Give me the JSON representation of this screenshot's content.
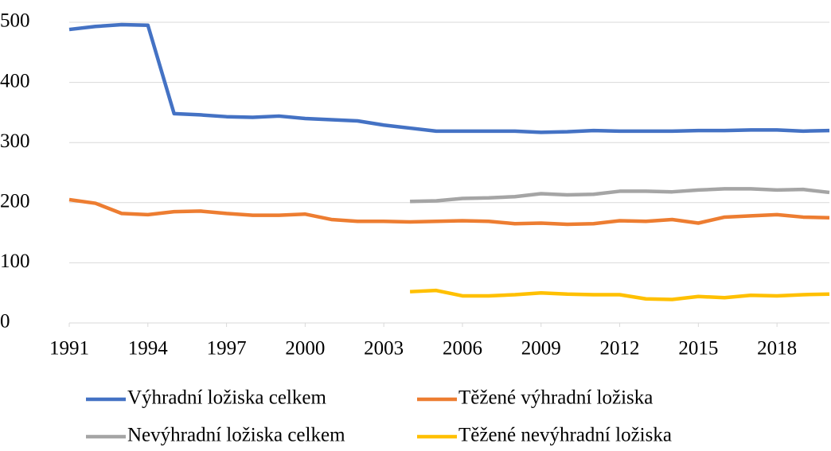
{
  "chart_data": {
    "type": "line",
    "x": [
      1991,
      1992,
      1993,
      1994,
      1995,
      1996,
      1997,
      1998,
      1999,
      2000,
      2001,
      2002,
      2003,
      2004,
      2005,
      2006,
      2007,
      2008,
      2009,
      2010,
      2011,
      2012,
      2013,
      2014,
      2015,
      2016,
      2017,
      2018,
      2019,
      2020
    ],
    "xlim": [
      1991,
      2020
    ],
    "xticks": [
      1991,
      1994,
      1997,
      2000,
      2003,
      2006,
      2009,
      2012,
      2015,
      2018
    ],
    "ylim": [
      0,
      500
    ],
    "yticks": [
      0,
      100,
      200,
      300,
      400,
      500
    ],
    "grid": true,
    "legend": "bottom",
    "series": [
      {
        "name": "Výhradní ložiska celkem",
        "color": "#4472c4",
        "values": [
          488,
          493,
          496,
          495,
          348,
          346,
          343,
          342,
          344,
          340,
          338,
          336,
          329,
          324,
          319,
          319,
          319,
          319,
          317,
          318,
          320,
          319,
          319,
          319,
          320,
          320,
          321,
          321,
          319,
          320
        ]
      },
      {
        "name": "Těžené výhradní ložiska",
        "color": "#ed7d31",
        "values": [
          205,
          199,
          182,
          180,
          185,
          186,
          182,
          179,
          179,
          181,
          172,
          169,
          169,
          168,
          169,
          170,
          169,
          165,
          166,
          164,
          165,
          170,
          169,
          172,
          166,
          176,
          178,
          180,
          176,
          175
        ]
      },
      {
        "name": "Nevýhradní ložiska celkem",
        "color": "#a5a5a5",
        "values": [
          null,
          null,
          null,
          null,
          null,
          null,
          null,
          null,
          null,
          null,
          null,
          null,
          null,
          202,
          203,
          207,
          208,
          210,
          215,
          213,
          214,
          219,
          219,
          218,
          221,
          223,
          223,
          221,
          222,
          217
        ]
      },
      {
        "name": "Těžené nevýhradní ložiska",
        "color": "#ffc000",
        "values": [
          null,
          null,
          null,
          null,
          null,
          null,
          null,
          null,
          null,
          null,
          null,
          null,
          null,
          52,
          54,
          45,
          45,
          47,
          50,
          48,
          47,
          47,
          40,
          39,
          44,
          42,
          46,
          45,
          47,
          48
        ]
      }
    ]
  }
}
